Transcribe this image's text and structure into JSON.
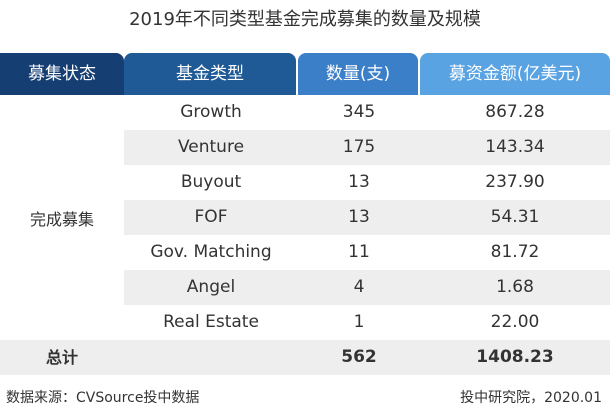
{
  "title": "2019年不同类型基金完成募集的数量及规模",
  "headers": {
    "status": "募集状态",
    "fund_type": "基金类型",
    "count": "数量(支)",
    "amount": "募资金额(亿美元)"
  },
  "status_label": "完成募集",
  "rows": [
    {
      "type": "Growth",
      "count": "345",
      "amount": "867.28"
    },
    {
      "type": "Venture",
      "count": "175",
      "amount": "143.34"
    },
    {
      "type": "Buyout",
      "count": "13",
      "amount": "237.90"
    },
    {
      "type": "FOF",
      "count": "13",
      "amount": "54.31"
    },
    {
      "type": "Gov. Matching",
      "count": "11",
      "amount": "81.72"
    },
    {
      "type": "Angel",
      "count": "4",
      "amount": "1.68"
    },
    {
      "type": "Real Estate",
      "count": "1",
      "amount": "22.00"
    }
  ],
  "total": {
    "label": "总计",
    "count": "562",
    "amount": "1408.23"
  },
  "footer": {
    "source": "数据来源：CVSource投中数据",
    "publisher": "投中研究院，2020.01"
  },
  "colors": {
    "header_status": "#153e73",
    "header_type": "#1f5a96",
    "header_count": "#3c7fc9",
    "header_amount": "#5aa3e3",
    "row_shade": "#eeeeee"
  }
}
